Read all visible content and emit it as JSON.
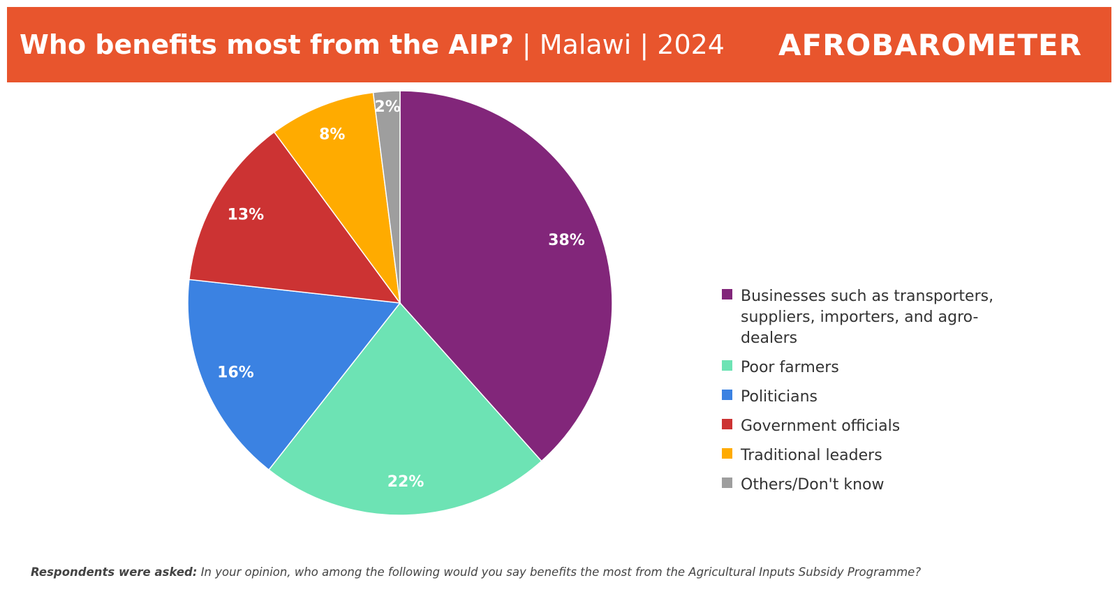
{
  "header": {
    "title": "Who benefits most from the AIP?",
    "subtitle": "| Malawi | 2024",
    "logo": "AFROBAROMETER",
    "background_color": "#e8552d"
  },
  "chart_data": {
    "type": "pie",
    "title": "Who benefits most from the AIP?",
    "legend_position": "right",
    "slices": [
      {
        "label": "Businesses such as transporters, suppliers, importers, and agro-dealers",
        "value": 38,
        "display": "38%",
        "color": "#82267a"
      },
      {
        "label": "Poor farmers",
        "value": 22,
        "display": "22%",
        "color": "#6de3b4"
      },
      {
        "label": "Politicians",
        "value": 16,
        "display": "16%",
        "color": "#3b82e2"
      },
      {
        "label": "Government officials",
        "value": 13,
        "display": "13%",
        "color": "#cc3333"
      },
      {
        "label": "Traditional leaders",
        "value": 8,
        "display": "8%",
        "color": "#ffab00"
      },
      {
        "label": "Others/Don't know",
        "value": 2,
        "display": "2%",
        "color": "#9e9e9e"
      }
    ]
  },
  "footnote": {
    "lead": "Respondents were asked:",
    "text": "In your opinion, who among the following would you say benefits the most from the Agricultural Inputs Subsidy Programme?"
  }
}
